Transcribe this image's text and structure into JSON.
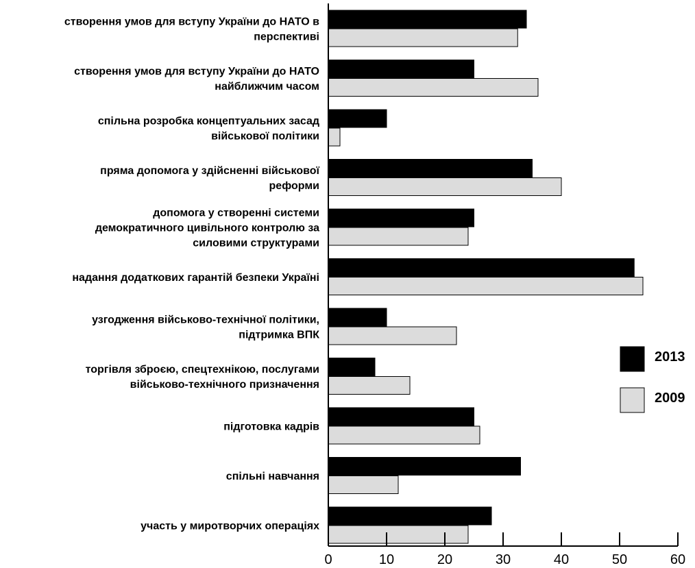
{
  "chart_data": {
    "type": "bar",
    "orientation": "horizontal",
    "categories": [
      [
        "створення умов для вступу України до НАТО в",
        "перспективі"
      ],
      [
        "створення умов для вступу України до НАТО",
        "найближчим часом"
      ],
      [
        "спільна розробка концептуальних засад",
        "військової політики"
      ],
      [
        "пряма допомога у здійсненні військової",
        "реформи"
      ],
      [
        "допомога у створенні системи",
        "демократичного цивільного контролю за",
        "силовими структурами"
      ],
      [
        "надання додаткових гарантій безпеки Україні"
      ],
      [
        "узгодження військово-технічної політики,",
        "підтримка ВПК"
      ],
      [
        "торгівля зброєю, спецтехнікою, послугами",
        "військово-технічного призначення"
      ],
      [
        "підготовка кадрів"
      ],
      [
        "спільні навчання"
      ],
      [
        "участь у миротворчих операціях"
      ]
    ],
    "series": [
      {
        "name": "2013",
        "color": "#000000",
        "values": [
          34,
          25,
          10,
          35,
          25,
          52.5,
          10,
          8,
          25,
          33,
          28
        ]
      },
      {
        "name": "2009",
        "color": "#dcdcdc",
        "values": [
          32.5,
          36,
          2,
          40,
          24,
          54,
          22,
          14,
          26,
          12,
          24
        ]
      }
    ],
    "xlim": [
      0,
      60
    ],
    "xticks": [
      "0",
      "10",
      "20",
      "30",
      "40",
      "50",
      "60"
    ],
    "legend_position": "right",
    "grid": false,
    "title": "",
    "xlabel": "",
    "ylabel": ""
  }
}
